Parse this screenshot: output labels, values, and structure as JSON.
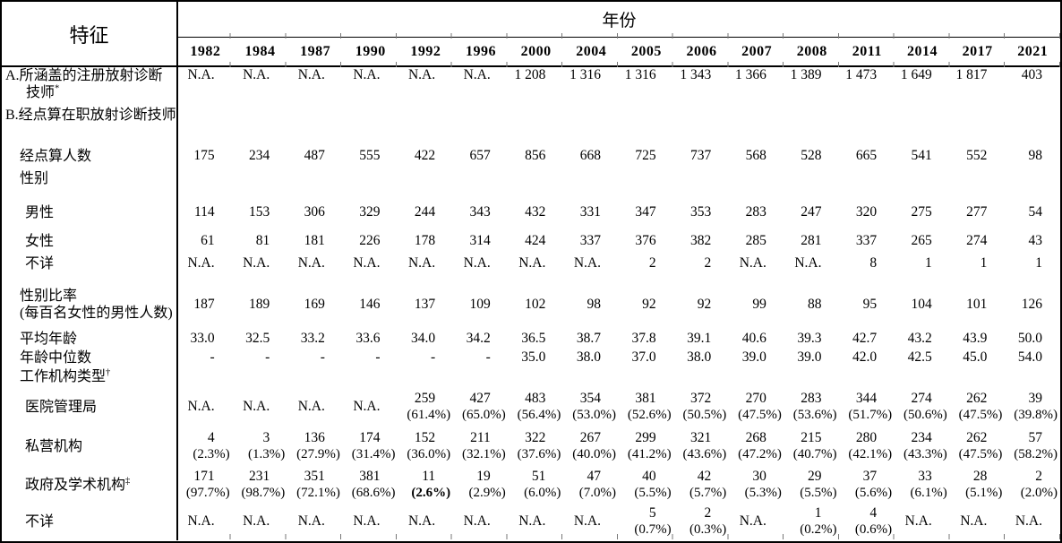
{
  "header": {
    "characteristic": "特征",
    "year_group": "年份",
    "years": [
      "1982",
      "1984",
      "1987",
      "1990",
      "1992",
      "1996",
      "2000",
      "2004",
      "2005",
      "2006",
      "2007",
      "2008",
      "2011",
      "2014",
      "2017",
      "2021"
    ]
  },
  "rows": [
    {
      "id": "registered",
      "label": "A.所涵盖的注册放射诊断技师",
      "sup": "*",
      "indent": 0,
      "values": [
        "N.A.",
        "N.A.",
        "N.A.",
        "N.A.",
        "N.A.",
        "N.A.",
        "1 208",
        "1 316",
        "1 316",
        "1 343",
        "1 366",
        "1 389",
        "1 473",
        "1 649",
        "1 817",
        "403"
      ]
    },
    {
      "id": "enumerated",
      "label": "B.经点算在职放射诊断技师",
      "sup": "",
      "indent": 0,
      "values": []
    },
    {
      "id": "count",
      "label": "经点算人数",
      "sup": "",
      "indent": 1,
      "values": [
        "175",
        "234",
        "487",
        "555",
        "422",
        "657",
        "856",
        "668",
        "725",
        "737",
        "568",
        "528",
        "665",
        "541",
        "552",
        "98"
      ]
    },
    {
      "id": "sex",
      "label": "性别",
      "sup": "",
      "indent": 1,
      "values": []
    },
    {
      "id": "male",
      "label": "男性",
      "sup": "",
      "indent": 2,
      "values": [
        "114",
        "153",
        "306",
        "329",
        "244",
        "343",
        "432",
        "331",
        "347",
        "353",
        "283",
        "247",
        "320",
        "275",
        "277",
        "54"
      ]
    },
    {
      "id": "female",
      "label": "女性",
      "sup": "",
      "indent": 2,
      "values": [
        "61",
        "81",
        "181",
        "226",
        "178",
        "314",
        "424",
        "337",
        "376",
        "382",
        "285",
        "281",
        "337",
        "265",
        "274",
        "43"
      ]
    },
    {
      "id": "sex-unknown",
      "label": "不详",
      "sup": "",
      "indent": 2,
      "values": [
        "N.A.",
        "N.A.",
        "N.A.",
        "N.A.",
        "N.A.",
        "N.A.",
        "N.A.",
        "N.A.",
        "2",
        "2",
        "N.A.",
        "N.A.",
        "8",
        "1",
        "1",
        "1"
      ]
    },
    {
      "id": "sex-ratio",
      "label": "性别比率",
      "label2": "(每百名女性的男性人数)",
      "sup": "",
      "indent": 1,
      "values": [
        "187",
        "189",
        "169",
        "146",
        "137",
        "109",
        "102",
        "98",
        "92",
        "92",
        "99",
        "88",
        "95",
        "104",
        "101",
        "126"
      ]
    },
    {
      "id": "mean-age",
      "label": "平均年龄",
      "sup": "",
      "indent": 1,
      "values": [
        "33.0",
        "32.5",
        "33.2",
        "33.6",
        "34.0",
        "34.2",
        "36.5",
        "38.7",
        "37.8",
        "39.1",
        "40.6",
        "39.3",
        "42.7",
        "43.2",
        "43.9",
        "50.0"
      ]
    },
    {
      "id": "median-age",
      "label": "年龄中位数",
      "sup": "",
      "indent": 1,
      "values": [
        "-",
        "-",
        "-",
        "-",
        "-",
        "-",
        "35.0",
        "38.0",
        "37.0",
        "38.0",
        "39.0",
        "39.0",
        "42.0",
        "42.5",
        "45.0",
        "54.0"
      ]
    },
    {
      "id": "org-type",
      "label": "工作机构类型",
      "sup": "†",
      "indent": 1,
      "values": []
    },
    {
      "id": "hospital-authority",
      "label": "医院管理局",
      "sup": "",
      "indent": 2,
      "values": [
        "N.A.",
        "N.A.",
        "N.A.",
        "N.A.",
        "259",
        "427",
        "483",
        "354",
        "381",
        "372",
        "270",
        "283",
        "344",
        "274",
        "262",
        "39"
      ],
      "pcts": [
        "",
        "",
        "",
        "",
        "(61.4%)",
        "(65.0%)",
        "(56.4%)",
        "(53.0%)",
        "(52.6%)",
        "(50.5%)",
        "(47.5%)",
        "(53.6%)",
        "(51.7%)",
        "(50.6%)",
        "(47.5%)",
        "(39.8%)"
      ]
    },
    {
      "id": "private",
      "label": "私营机构",
      "sup": "",
      "indent": 2,
      "values": [
        "4",
        "3",
        "136",
        "174",
        "152",
        "211",
        "322",
        "267",
        "299",
        "321",
        "268",
        "215",
        "280",
        "234",
        "262",
        "57"
      ],
      "pcts": [
        "(2.3%)",
        "(1.3%)",
        "(27.9%)",
        "(31.4%)",
        "(36.0%)",
        "(32.1%)",
        "(37.6%)",
        "(40.0%)",
        "(41.2%)",
        "(43.6%)",
        "(47.2%)",
        "(40.7%)",
        "(42.1%)",
        "(43.3%)",
        "(47.5%)",
        "(58.2%)"
      ]
    },
    {
      "id": "govt-academic",
      "label": "政府及学术机构",
      "sup": "‡",
      "indent": 2,
      "values": [
        "171",
        "231",
        "351",
        "381",
        "11",
        "19",
        "51",
        "47",
        "40",
        "42",
        "30",
        "29",
        "37",
        "33",
        "28",
        "2"
      ],
      "pcts": [
        "(97.7%)",
        "(98.7%)",
        "(72.1%)",
        "(68.6%)",
        "(2.6%)",
        "(2.9%)",
        "(6.0%)",
        "(7.0%)",
        "(5.5%)",
        "(5.7%)",
        "(5.3%)",
        "(5.5%)",
        "(5.6%)",
        "(6.1%)",
        "(5.1%)",
        "(2.0%)"
      ],
      "bold_pct_cols": [
        4
      ]
    },
    {
      "id": "org-unknown",
      "label": "不详",
      "sup": "",
      "indent": 2,
      "values": [
        "N.A.",
        "N.A.",
        "N.A.",
        "N.A.",
        "N.A.",
        "N.A.",
        "N.A.",
        "N.A.",
        "5",
        "2",
        "N.A.",
        "1",
        "4",
        "N.A.",
        "N.A.",
        "N.A."
      ],
      "pcts": [
        "",
        "",
        "",
        "",
        "",
        "",
        "",
        "",
        "(0.7%)",
        "(0.3%)",
        "",
        "(0.2%)",
        "(0.6%)",
        "",
        "",
        ""
      ]
    }
  ]
}
